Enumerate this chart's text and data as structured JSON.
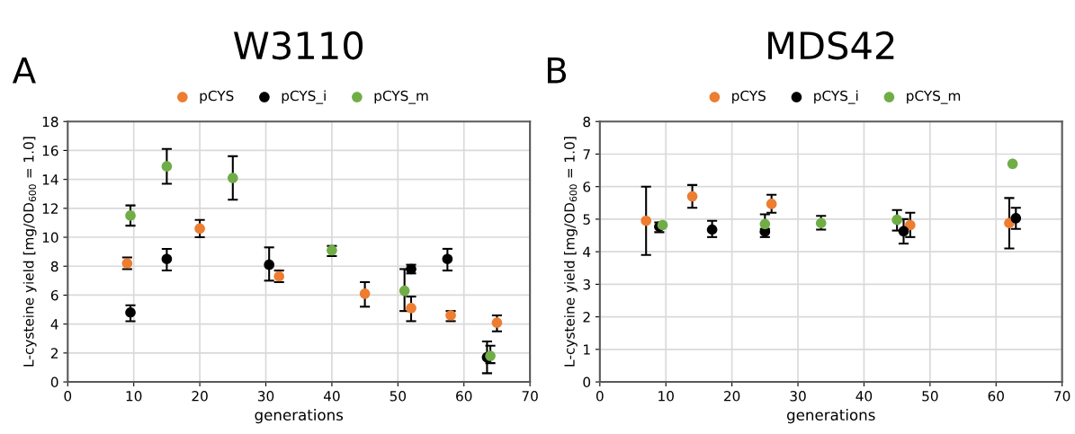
{
  "chart_data": [
    {
      "type": "scatter",
      "title": "W3110",
      "annotations": [
        "A"
      ],
      "xlabel": "generations",
      "ylabel": "L-cysteine yield [mg/OD$_{600}$ = 1.0]",
      "xlim": [
        0,
        70
      ],
      "xticks": [
        0,
        10,
        20,
        30,
        40,
        50,
        60,
        70
      ],
      "ylim": [
        0,
        18
      ],
      "yticks": [
        0,
        2,
        4,
        6,
        8,
        10,
        12,
        14,
        16,
        18
      ],
      "grid": true,
      "legend": "top",
      "marker": "circle",
      "series": [
        {
          "name": "pCYS",
          "color": "#ed7d31",
          "x": [
            9,
            20,
            32,
            45,
            52,
            58,
            65
          ],
          "values": [
            8.2,
            10.6,
            7.3,
            6.1,
            5.1,
            4.6,
            4.1
          ],
          "errors": [
            [
              7.8,
              8.6
            ],
            [
              10.0,
              11.2
            ],
            [
              6.9,
              7.7
            ],
            [
              5.2,
              6.9
            ],
            [
              4.2,
              5.9
            ],
            [
              4.2,
              4.9
            ],
            [
              3.5,
              4.6
            ]
          ]
        },
        {
          "name": "pCYS_i",
          "color": "#000000",
          "x": [
            9.5,
            15,
            30.5,
            52,
            57.5,
            63.5
          ],
          "values": [
            4.8,
            8.5,
            8.1,
            7.8,
            8.5,
            1.7
          ],
          "errors": [
            [
              4.2,
              5.3
            ],
            [
              7.7,
              9.2
            ],
            [
              7.0,
              9.3
            ],
            [
              7.5,
              8.1
            ],
            [
              7.7,
              9.2
            ],
            [
              0.6,
              2.8
            ]
          ]
        },
        {
          "name": "pCYS_m",
          "color": "#70ad47",
          "x": [
            9.5,
            15,
            25,
            40,
            51,
            64
          ],
          "values": [
            11.5,
            14.9,
            14.1,
            9.1,
            6.3,
            1.8
          ],
          "errors": [
            [
              10.8,
              12.2
            ],
            [
              13.7,
              16.1
            ],
            [
              12.6,
              15.6
            ],
            [
              8.7,
              9.4
            ],
            [
              4.9,
              7.8
            ],
            [
              1.3,
              2.5
            ]
          ]
        }
      ]
    },
    {
      "type": "scatter",
      "title": "MDS42",
      "annotations": [
        "B"
      ],
      "xlabel": "generations",
      "ylabel": "L-cysteine yield [mg/OD$_{600}$ = 1.0]",
      "xlim": [
        0,
        70
      ],
      "xticks": [
        0,
        10,
        20,
        30,
        40,
        50,
        60,
        70
      ],
      "ylim": [
        0,
        8
      ],
      "yticks": [
        0,
        1,
        2,
        3,
        4,
        5,
        6,
        7,
        8
      ],
      "grid": true,
      "legend": "top",
      "marker": "circle",
      "series": [
        {
          "name": "pCYS",
          "color": "#ed7d31",
          "x": [
            7,
            14,
            26,
            47,
            62
          ],
          "values": [
            4.95,
            5.7,
            5.47,
            4.82,
            4.88
          ],
          "errors": [
            [
              3.9,
              6.0
            ],
            [
              5.35,
              6.05
            ],
            [
              5.2,
              5.75
            ],
            [
              4.45,
              5.2
            ],
            [
              4.1,
              5.65
            ]
          ]
        },
        {
          "name": "pCYS_i",
          "color": "#000000",
          "x": [
            9,
            17,
            25,
            46,
            63
          ],
          "values": [
            4.77,
            4.68,
            4.62,
            4.63,
            5.03
          ],
          "errors": [
            [
              4.6,
              4.9
            ],
            [
              4.45,
              4.95
            ],
            [
              4.45,
              4.7
            ],
            [
              4.25,
              5.0
            ],
            [
              4.7,
              5.35
            ]
          ]
        },
        {
          "name": "pCYS_m",
          "color": "#70ad47",
          "x": [
            9.5,
            25,
            33.5,
            45,
            62.5
          ],
          "values": [
            4.82,
            4.85,
            4.88,
            4.98,
            6.7
          ],
          "errors": [
            null,
            [
              4.6,
              5.15
            ],
            [
              4.68,
              5.1
            ],
            [
              4.65,
              5.28
            ],
            null
          ]
        }
      ]
    }
  ]
}
